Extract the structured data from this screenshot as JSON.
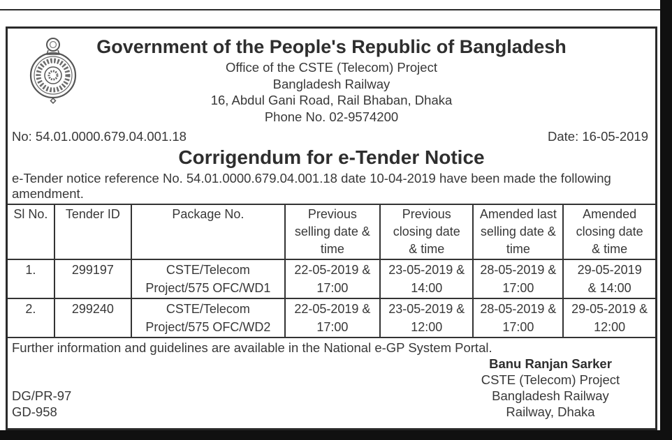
{
  "colors": {
    "paper": "#ffffff",
    "ink": "#333333",
    "border": "#2a2a2a",
    "edge_bar": "#101010"
  },
  "header": {
    "emblem_icon": "government-seal-icon",
    "gov_title": "Government of the People's Republic of Bangladesh",
    "office_line": "Office of the CSTE (Telecom) Project",
    "org_line": "Bangladesh Railway",
    "address_line": "16, Abdul Gani Road, Rail Bhaban, Dhaka",
    "phone_line": "Phone No. 02-9574200"
  },
  "memo": {
    "no": "No: 54.01.0000.679.04.001.18",
    "date": "Date: 16-05-2019"
  },
  "notice": {
    "title": "Corrigendum for e-Tender Notice",
    "reference_line1": "e-Tender notice reference No. 54.01.0000.679.04.001.18 date 10-04-2019 have been made the following",
    "reference_line2": "amendment."
  },
  "table": {
    "col_widths": [
      "7.2%",
      "11.9%",
      "23.7%",
      "14.7%",
      "14.4%",
      "13.9%",
      "14.2%"
    ],
    "headers": [
      {
        "lines": [
          "Sl No."
        ]
      },
      {
        "lines": [
          "Tender ID"
        ]
      },
      {
        "lines": [
          "Package No."
        ]
      },
      {
        "lines": [
          "Previous",
          "selling date &",
          "time"
        ]
      },
      {
        "lines": [
          "Previous",
          "closing date",
          "& time"
        ]
      },
      {
        "lines": [
          "Amended last",
          "selling date &",
          "time"
        ]
      },
      {
        "lines": [
          "Amended",
          "closing date",
          "& time"
        ]
      }
    ],
    "rows": [
      {
        "cells": [
          [
            "1."
          ],
          [
            "299197"
          ],
          [
            "CSTE/Telecom",
            "Project/575 OFC/WD1"
          ],
          [
            "22-05-2019 &",
            "17:00"
          ],
          [
            "23-05-2019 &",
            "14:00"
          ],
          [
            "28-05-2019 &",
            "17:00"
          ],
          [
            "29-05-2019",
            "& 14:00"
          ]
        ]
      },
      {
        "cells": [
          [
            "2."
          ],
          [
            "299240"
          ],
          [
            "CSTE/Telecom",
            "Project/575 OFC/WD2"
          ],
          [
            "22-05-2019 &",
            "17:00"
          ],
          [
            "23-05-2019 &",
            "12:00"
          ],
          [
            "28-05-2019 &",
            "17:00"
          ],
          [
            "29-05-2019 &",
            "12:00"
          ]
        ]
      }
    ]
  },
  "footer": {
    "portal_note": "Further information and guidelines are available in the National e-GP System Portal.",
    "codes": [
      "DG/PR-97",
      "GD-958"
    ],
    "signature": {
      "name": "Banu Ranjan Sarker",
      "lines": [
        "CSTE (Telecom) Project",
        "Bangladesh Railway",
        "Railway, Dhaka"
      ]
    }
  }
}
